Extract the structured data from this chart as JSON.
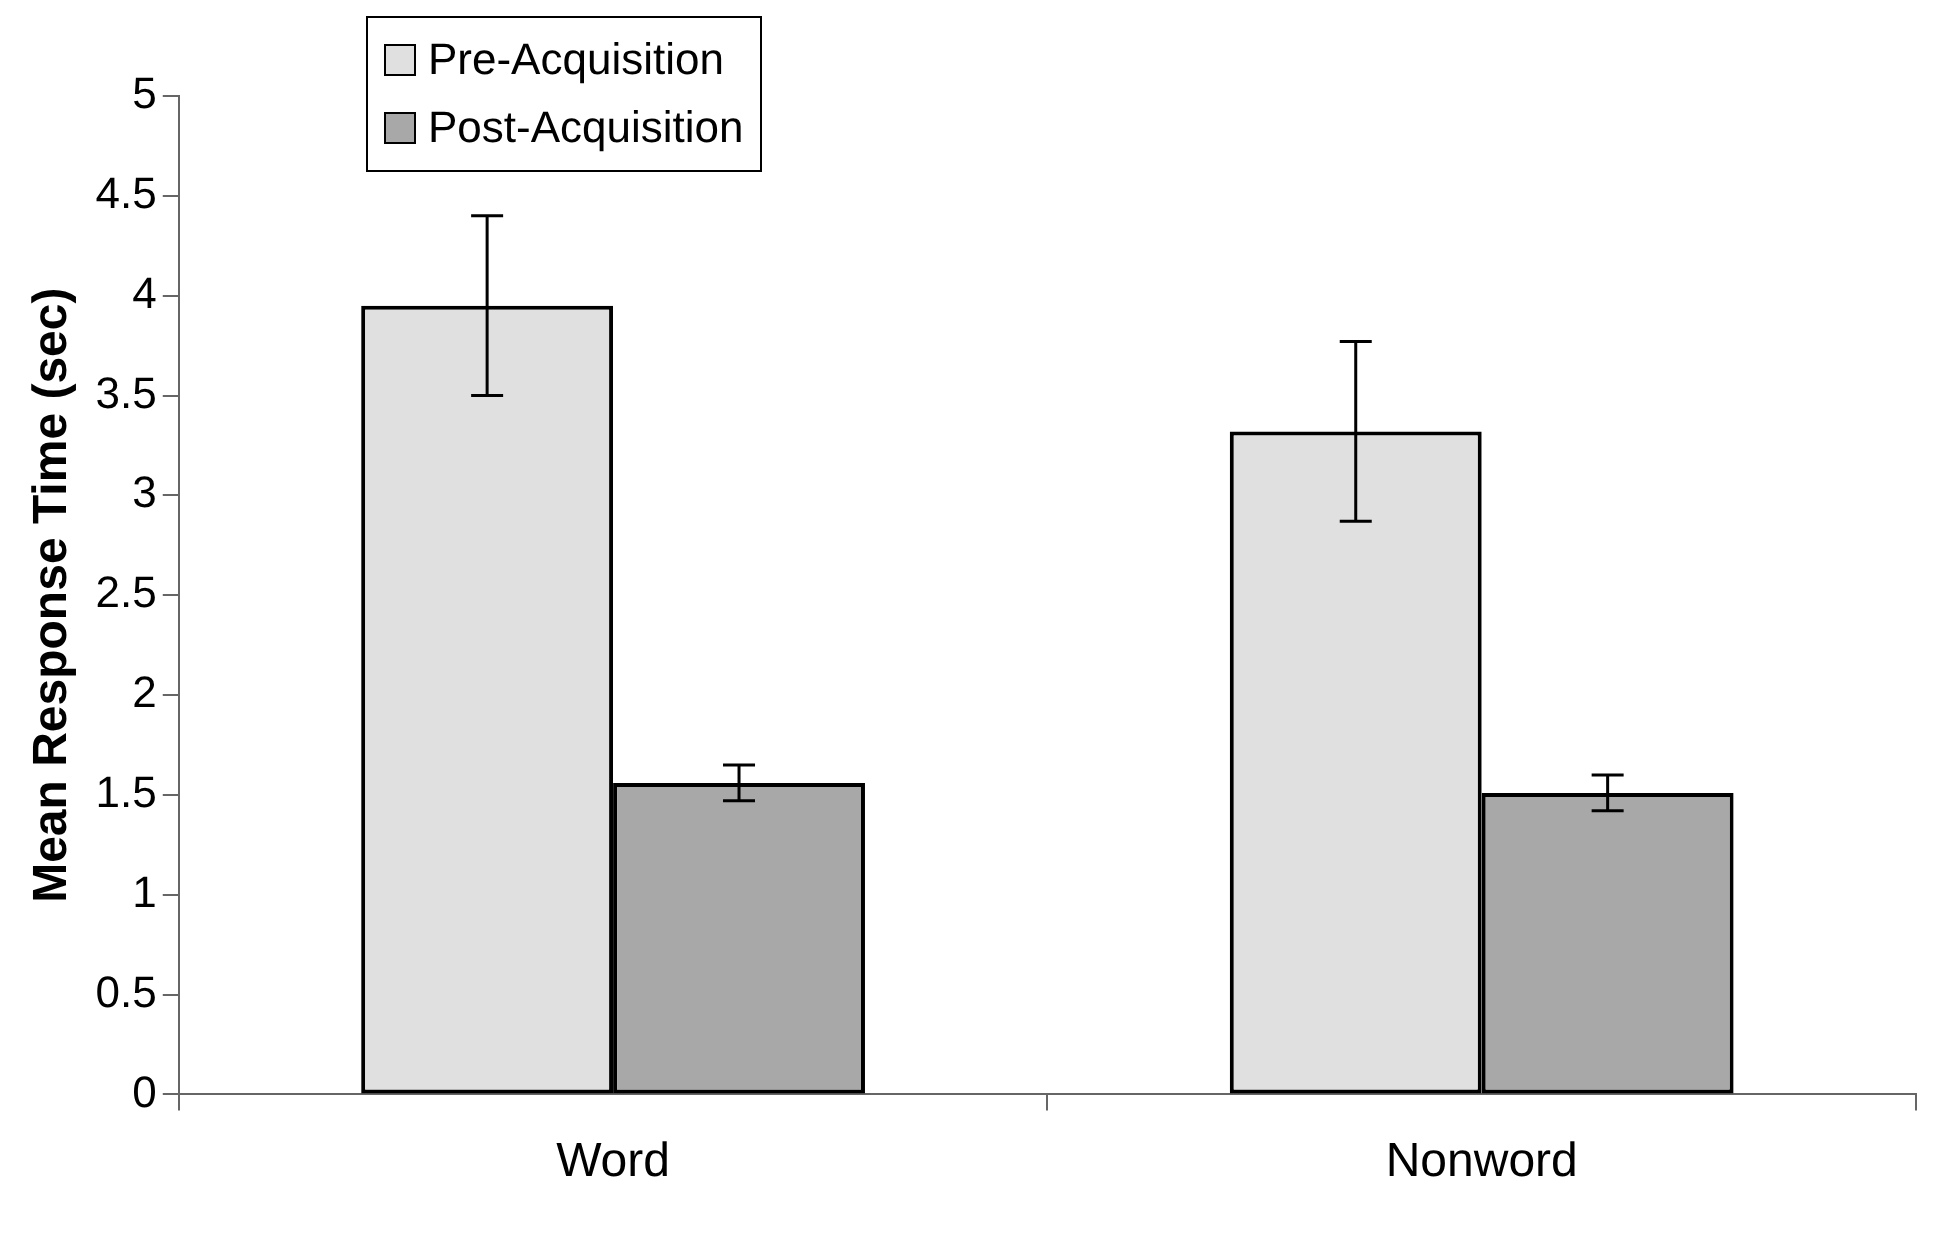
{
  "chart_data": {
    "type": "bar",
    "ylabel": "Mean Response Time (sec)",
    "categories": [
      "Word",
      "Nonword"
    ],
    "series": [
      {
        "name": "Pre-Acquisition",
        "color": "#e0e0e0",
        "values": [
          3.95,
          3.32
        ],
        "errors": [
          0.45,
          0.45
        ]
      },
      {
        "name": "Post-Acquisition",
        "color": "#a8a8a8",
        "values": [
          1.56,
          1.51
        ],
        "errors": [
          0.09,
          0.09
        ]
      }
    ],
    "ylim": [
      0,
      5
    ],
    "yticks": [
      0,
      0.5,
      1,
      1.5,
      2,
      2.5,
      3,
      3.5,
      4,
      4.5,
      5
    ],
    "grid": false,
    "legend": "top left"
  }
}
